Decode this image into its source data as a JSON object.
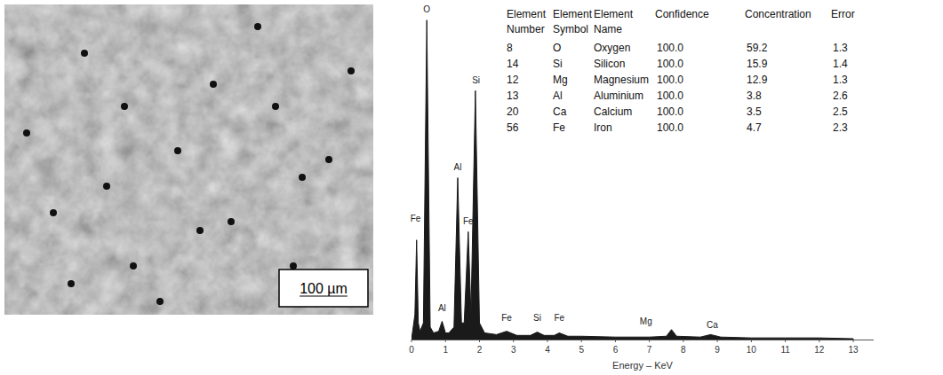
{
  "chart_data": {
    "type": "area",
    "x_label": "Energy – KeV",
    "x": [
      0,
      0.1,
      0.15,
      0.2,
      0.25,
      0.35,
      0.45,
      0.55,
      0.65,
      0.8,
      0.9,
      1.0,
      1.1,
      1.25,
      1.36,
      1.47,
      1.55,
      1.67,
      1.75,
      1.88,
      2.0,
      2.15,
      2.5,
      2.8,
      3.1,
      3.5,
      3.7,
      3.9,
      4.2,
      4.35,
      4.6,
      5,
      6,
      7,
      7.5,
      7.65,
      7.8,
      8.5,
      8.8,
      9.1,
      10,
      11,
      12,
      13
    ],
    "values": [
      0,
      30,
      120,
      20,
      10,
      20,
      385,
      15,
      8,
      10,
      22,
      8,
      8,
      15,
      195,
      20,
      20,
      130,
      30,
      300,
      20,
      8,
      6,
      10,
      5,
      5,
      9,
      5,
      5,
      8,
      4,
      4,
      3,
      3,
      4,
      12,
      4,
      3,
      6,
      3,
      2,
      2,
      2,
      1
    ],
    "color": "#1a1a1a",
    "xlim": [
      0,
      13.6
    ],
    "xticks": [
      0,
      1,
      2,
      3,
      4,
      5,
      6,
      7,
      8,
      9,
      10,
      11,
      12,
      13
    ],
    "ylim": [
      0,
      390
    ],
    "tick_labels": "x",
    "grid": false,
    "annotations": [
      {
        "text": "Fe",
        "x": 0.12,
        "y": 140
      },
      {
        "text": "O",
        "x": 0.45,
        "y": 392
      },
      {
        "text": "Al",
        "x": 0.9,
        "y": 32
      },
      {
        "text": "Al",
        "x": 1.36,
        "y": 202
      },
      {
        "text": "Fe",
        "x": 1.67,
        "y": 137
      },
      {
        "text": "Si",
        "x": 1.9,
        "y": 307
      },
      {
        "text": "Fe",
        "x": 2.8,
        "y": 20
      },
      {
        "text": "Si",
        "x": 3.7,
        "y": 20
      },
      {
        "text": "Fe",
        "x": 4.35,
        "y": 20
      },
      {
        "text": "Mg",
        "x": 6.9,
        "y": 16
      },
      {
        "text": "Ca",
        "x": 8.85,
        "y": 12
      }
    ]
  },
  "micrograph": {
    "scale_bar": "100 µm"
  },
  "table": {
    "columns": [
      "Element Number",
      "Element Symbol",
      "Element Name",
      "Confidence",
      "Concentration",
      "Error"
    ],
    "rows": [
      [
        "8",
        "O",
        "Oxygen",
        "100.0",
        "59.2",
        "1.3"
      ],
      [
        "14",
        "Si",
        "Silicon",
        "100.0",
        "15.9",
        "1.4"
      ],
      [
        "12",
        "Mg",
        "Magnesium",
        "100.0",
        "12.9",
        "1.3"
      ],
      [
        "13",
        "Al",
        "Aluminium",
        "100.0",
        "3.8",
        "2.6"
      ],
      [
        "20",
        "Ca",
        "Calcium",
        "100.0",
        "3.5",
        "2.5"
      ],
      [
        "56",
        "Fe",
        "Iron",
        "100.0",
        "4.7",
        "2.3"
      ]
    ]
  }
}
